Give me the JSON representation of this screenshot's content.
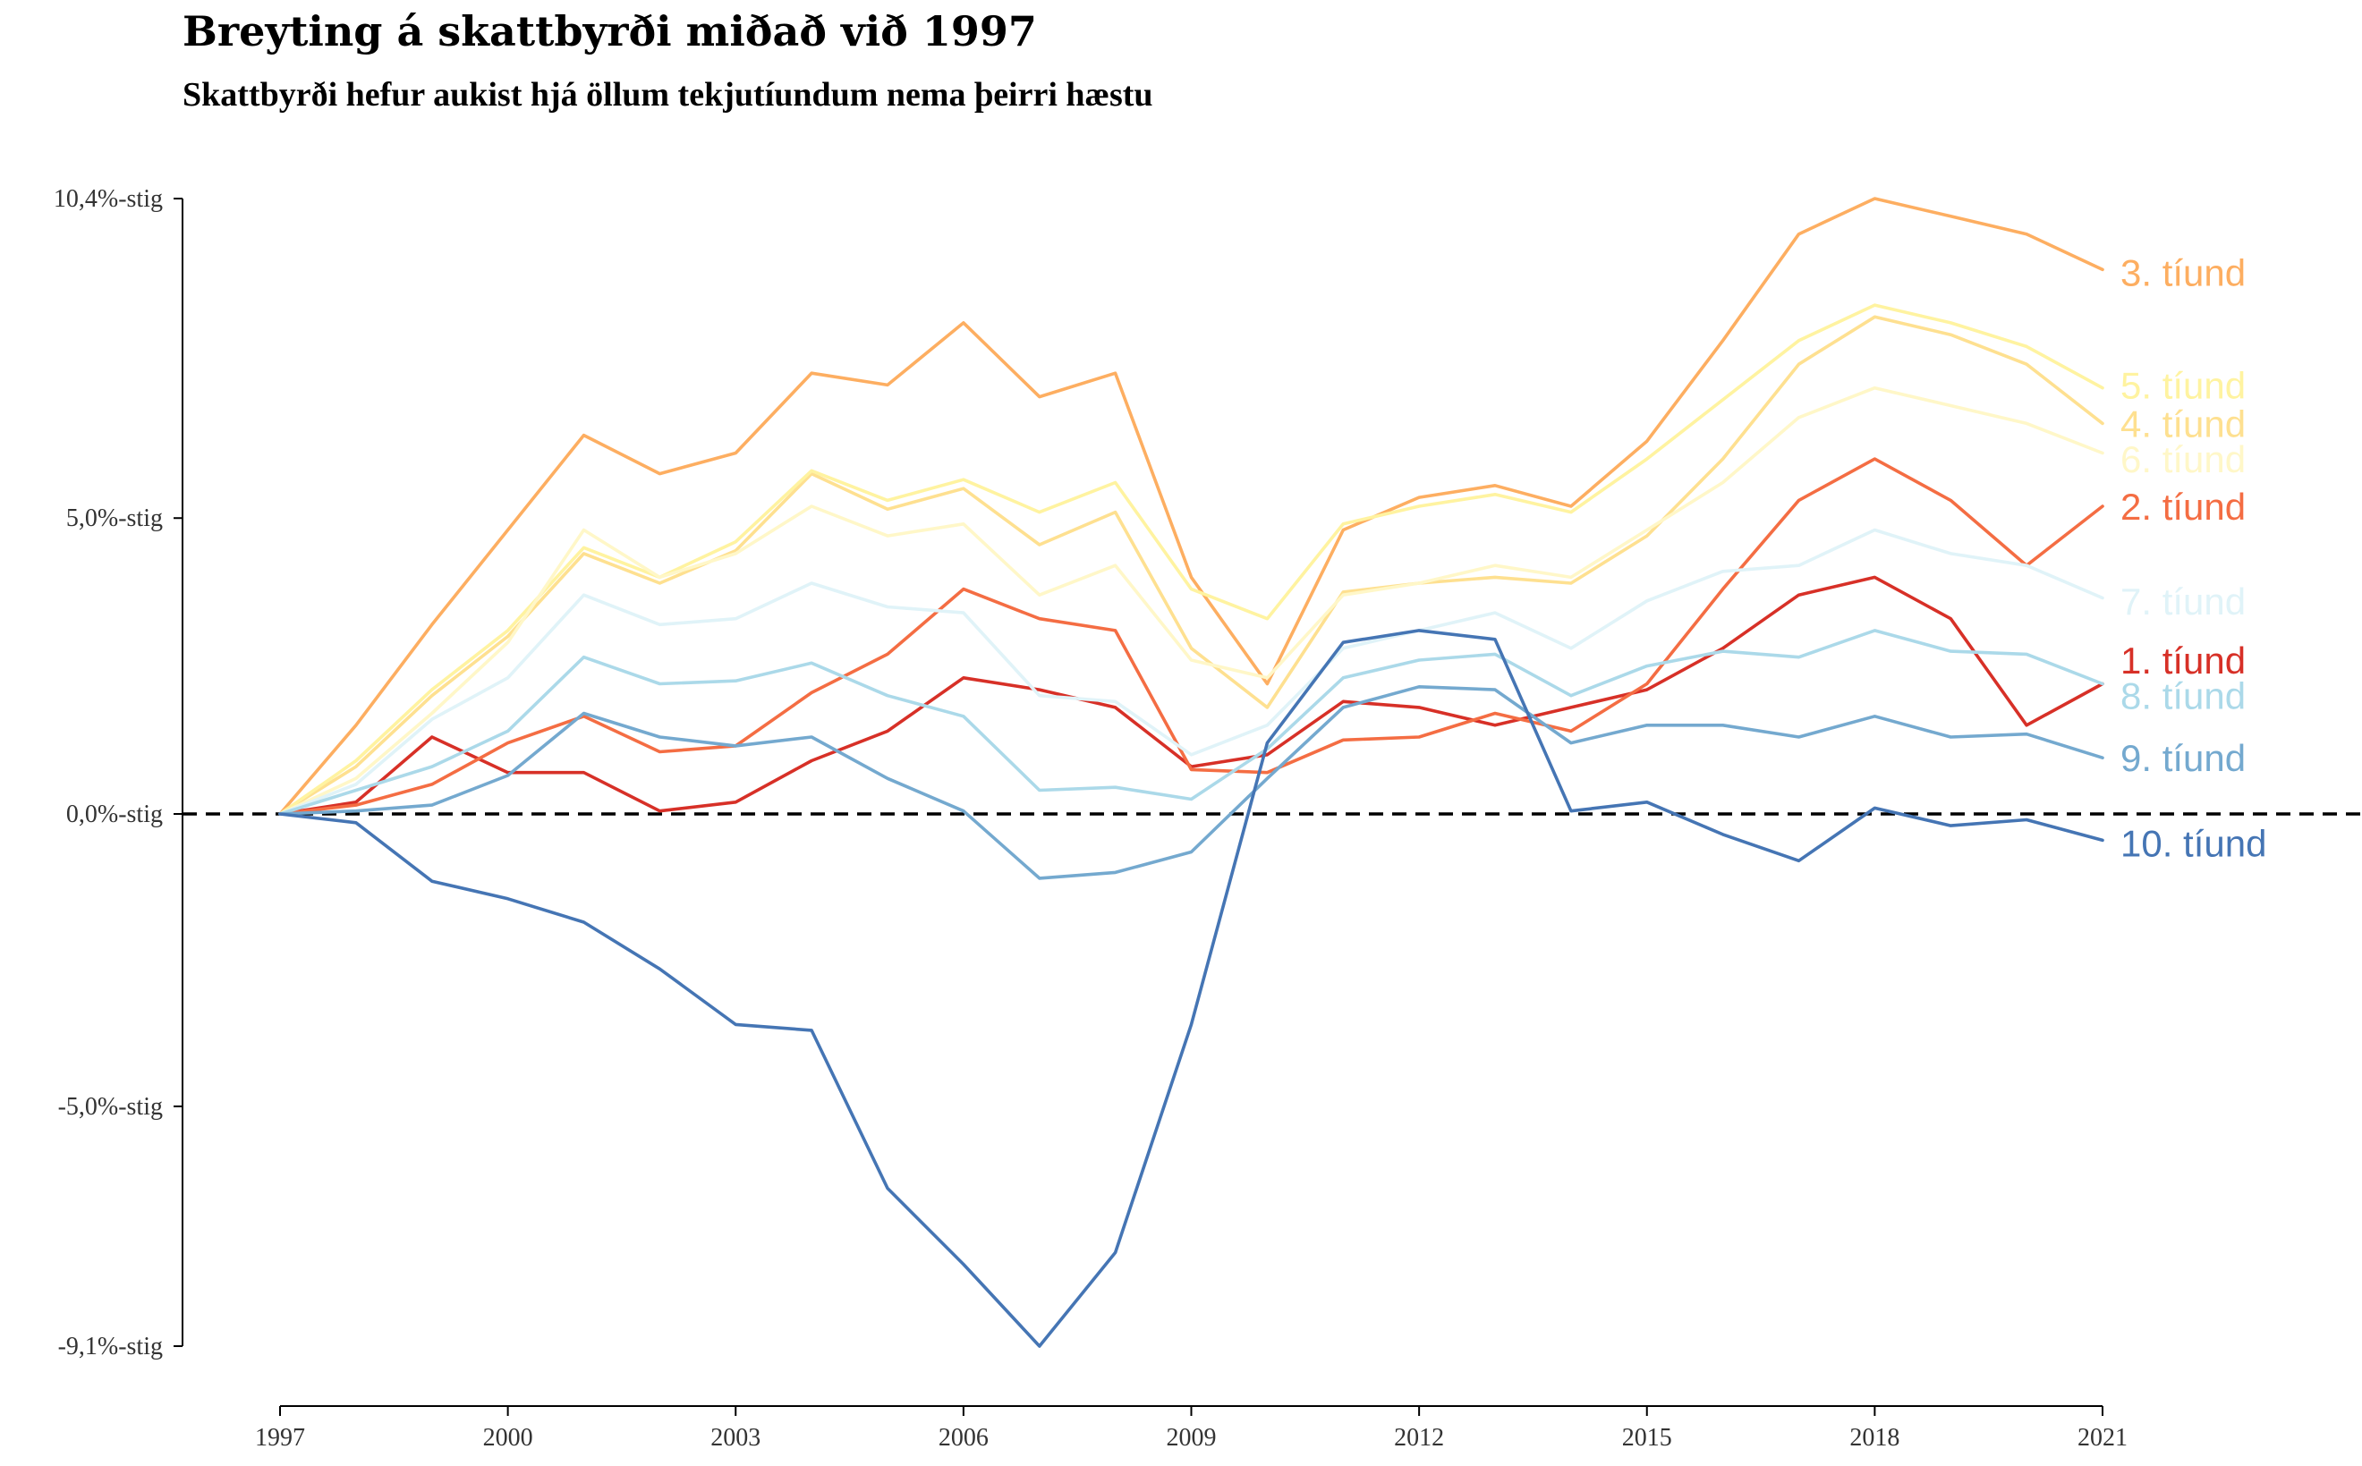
{
  "chart_data": {
    "type": "line",
    "title": "Breyting á skattbyrði miðað við 1997",
    "subtitle": "Skattbyrði hefur aukist hjá öllum tekjutíundum nema þeirri hæstu",
    "xlabel": "",
    "ylabel": "",
    "xlim": [
      1997,
      2021
    ],
    "ylim": [
      -9.1,
      10.4
    ],
    "x_ticks": [
      1997,
      2000,
      2003,
      2006,
      2009,
      2012,
      2015,
      2018,
      2021
    ],
    "x_tick_labels": [
      "1997",
      "2000",
      "2003",
      "2006",
      "2009",
      "2012",
      "2015",
      "2018",
      "2021"
    ],
    "y_ticks": [
      -9.1,
      -5.0,
      0.0,
      5.0,
      10.4
    ],
    "y_tick_labels": [
      "-9,1%-stig",
      "-5,0%-stig",
      "0,0%-stig",
      "5,0%-stig",
      "10,4%-stig"
    ],
    "reference_line": {
      "y": 0,
      "style": "dashed",
      "color": "#000000"
    },
    "grid": false,
    "legend": "direct-labels-right",
    "x": [
      1997,
      1998,
      1999,
      2000,
      2001,
      2002,
      2003,
      2004,
      2005,
      2006,
      2007,
      2008,
      2009,
      2010,
      2011,
      2012,
      2013,
      2014,
      2015,
      2016,
      2017,
      2018,
      2019,
      2020,
      2021
    ],
    "series": [
      {
        "name": "1. tíund",
        "color": "#d73027",
        "values": [
          0,
          0.2,
          1.3,
          0.7,
          0.7,
          0.05,
          0.2,
          0.9,
          1.4,
          2.3,
          2.1,
          1.8,
          0.8,
          1.0,
          1.9,
          1.8,
          1.5,
          1.8,
          2.1,
          2.8,
          3.7,
          4.0,
          3.3,
          1.5,
          2.2
        ]
      },
      {
        "name": "2. tíund",
        "color": "#f46d43",
        "values": [
          0,
          0.15,
          0.5,
          1.2,
          1.65,
          1.05,
          1.15,
          2.05,
          2.7,
          3.8,
          3.3,
          3.1,
          0.75,
          0.7,
          1.25,
          1.3,
          1.7,
          1.4,
          2.2,
          3.8,
          5.3,
          6.0,
          5.3,
          4.2,
          5.2
        ]
      },
      {
        "name": "3. tíund",
        "color": "#fdae61",
        "values": [
          0,
          1.5,
          3.2,
          4.8,
          6.4,
          5.75,
          6.1,
          7.45,
          7.25,
          8.3,
          7.05,
          7.45,
          4.0,
          2.2,
          4.8,
          5.35,
          5.55,
          5.2,
          6.3,
          8.0,
          9.8,
          10.4,
          10.1,
          9.8,
          9.2
        ]
      },
      {
        "name": "4. tíund",
        "color": "#fee090",
        "values": [
          0,
          0.8,
          2.0,
          3.0,
          4.4,
          3.9,
          4.45,
          5.75,
          5.15,
          5.5,
          4.55,
          5.1,
          2.8,
          1.8,
          3.75,
          3.9,
          4.0,
          3.9,
          4.7,
          6.0,
          7.6,
          8.4,
          8.1,
          7.6,
          6.6
        ]
      },
      {
        "name": "5. tíund",
        "color": "#fff3a0",
        "values": [
          0,
          0.9,
          2.1,
          3.1,
          4.5,
          4.0,
          4.6,
          5.8,
          5.3,
          5.65,
          5.1,
          5.6,
          3.8,
          3.3,
          4.9,
          5.2,
          5.4,
          5.1,
          6.0,
          7.0,
          8.0,
          8.6,
          8.3,
          7.9,
          7.2
        ]
      },
      {
        "name": "6. tíund",
        "color": "#fff7c8",
        "values": [
          0,
          0.6,
          1.7,
          2.9,
          4.8,
          4.0,
          4.4,
          5.2,
          4.7,
          4.9,
          3.7,
          4.2,
          2.6,
          2.3,
          3.7,
          3.9,
          4.2,
          4.0,
          4.8,
          5.6,
          6.7,
          7.2,
          6.9,
          6.6,
          6.1
        ]
      },
      {
        "name": "7. tíund",
        "color": "#e0f3f8",
        "values": [
          0,
          0.5,
          1.6,
          2.3,
          3.7,
          3.2,
          3.3,
          3.9,
          3.5,
          3.4,
          2.0,
          1.9,
          1.0,
          1.5,
          2.8,
          3.1,
          3.4,
          2.8,
          3.6,
          4.1,
          4.2,
          4.8,
          4.4,
          4.2,
          3.65
        ]
      },
      {
        "name": "8. tíund",
        "color": "#abd9e9",
        "values": [
          0,
          0.4,
          0.8,
          1.4,
          2.65,
          2.2,
          2.25,
          2.55,
          2.0,
          1.65,
          0.4,
          0.45,
          0.25,
          1.1,
          2.3,
          2.6,
          2.7,
          2.0,
          2.5,
          2.75,
          2.65,
          3.1,
          2.75,
          2.7,
          2.2
        ]
      },
      {
        "name": "9. tíund",
        "color": "#74a9cf",
        "values": [
          0,
          0.05,
          0.15,
          0.65,
          1.7,
          1.3,
          1.15,
          1.3,
          0.6,
          0.05,
          -1.1,
          -1.0,
          -0.65,
          0.6,
          1.8,
          2.15,
          2.1,
          1.2,
          1.5,
          1.5,
          1.3,
          1.65,
          1.3,
          1.35,
          0.95
        ]
      },
      {
        "name": "10. tíund",
        "color": "#4575b4",
        "values": [
          0,
          -0.15,
          -1.15,
          -1.45,
          -1.85,
          -2.65,
          -3.6,
          -3.7,
          -6.4,
          -7.7,
          -9.1,
          -7.5,
          -3.6,
          1.2,
          2.9,
          3.1,
          2.95,
          0.05,
          0.2,
          -0.35,
          -0.8,
          0.1,
          -0.2,
          -0.1,
          -0.45
        ]
      }
    ],
    "series_label_positions": {
      "1. tíund": 2.6,
      "2. tíund": 5.2,
      "3. tíund": 9.15,
      "4. tíund": 6.6,
      "5. tíund": 7.25,
      "6. tíund": 6.0,
      "7. tíund": 3.6,
      "8. tíund": 2.0,
      "9. tíund": 0.95,
      "10. tíund": -0.5
    }
  }
}
